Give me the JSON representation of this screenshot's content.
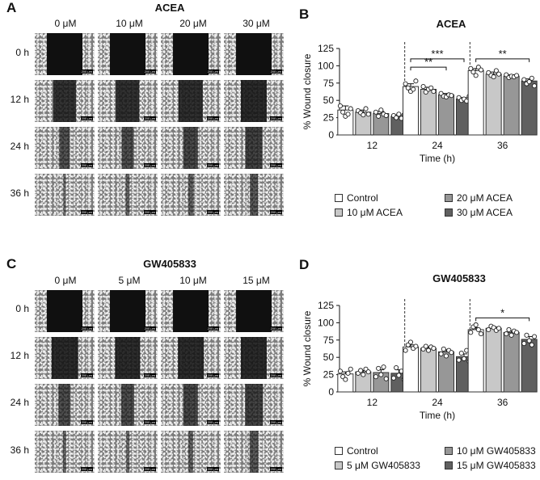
{
  "panels": [
    {
      "label": "A",
      "title": "ACEA",
      "columns": [
        "0 μM",
        "10 μM",
        "20 μM",
        "30 μM"
      ],
      "rows": [
        "0 h",
        "12 h",
        "24 h",
        "36 h"
      ],
      "scale_text": "200 μm",
      "closure_pct": [
        [
          0,
          0,
          0,
          0
        ],
        [
          36,
          33,
          31,
          27
        ],
        [
          70,
          66,
          58,
          52
        ],
        [
          93,
          88,
          85,
          78
        ]
      ]
    },
    {
      "label": "C",
      "title": "GW405833",
      "columns": [
        "0 μM",
        "5 μM",
        "10 μM",
        "15 μM"
      ],
      "rows": [
        "0 h",
        "12 h",
        "24 h",
        "36 h"
      ],
      "scale_text": "200 μm",
      "closure_pct": [
        [
          0,
          0,
          0,
          0
        ],
        [
          26,
          29,
          28,
          27
        ],
        [
          65,
          63,
          58,
          51
        ],
        [
          90,
          92,
          86,
          76
        ]
      ]
    }
  ],
  "chart_data": [
    {
      "panel_label": "B",
      "type": "bar",
      "title": "ACEA",
      "xlabel": "Time (h)",
      "ylabel": "% Wound closure",
      "categories": [
        "12",
        "24",
        "36"
      ],
      "ylim": [
        0,
        125
      ],
      "yticks": [
        0,
        25,
        50,
        75,
        100,
        125
      ],
      "series": [
        {
          "name": "Control",
          "color": "#ffffff",
          "values": [
            36,
            70,
            93
          ],
          "errors": [
            6,
            4,
            3
          ],
          "points": [
            [
              42,
              33,
              27,
              30,
              38
            ],
            [
              74,
              68,
              63,
              66,
              78
            ],
            [
              96,
              91,
              86,
              98,
              94
            ]
          ]
        },
        {
          "name": "10 μM ACEA",
          "color": "#c8c8c8",
          "values": [
            33,
            66,
            88
          ],
          "errors": [
            3,
            3,
            3
          ],
          "points": [
            [
              35,
              32,
              29,
              38,
              30
            ],
            [
              70,
              62,
              66,
              68,
              63
            ],
            [
              90,
              86,
              84,
              93,
              88
            ]
          ]
        },
        {
          "name": "20 μM ACEA",
          "color": "#979797",
          "values": [
            31,
            58,
            85
          ],
          "errors": [
            3,
            2,
            2
          ],
          "points": [
            [
              33,
              27,
              36,
              30,
              28
            ],
            [
              60,
              56,
              55,
              58,
              57
            ],
            [
              87,
              83,
              85,
              84,
              86
            ]
          ]
        },
        {
          "name": "30 μM ACEA",
          "color": "#606060",
          "values": [
            27,
            52,
            78
          ],
          "errors": [
            2,
            2,
            3
          ],
          "points": [
            [
              28,
              25,
              30,
              24,
              29
            ],
            [
              54,
              50,
              52,
              49,
              56
            ],
            [
              80,
              74,
              77,
              82,
              71
            ]
          ]
        }
      ],
      "significance": [
        {
          "category": "24",
          "from_series": 0,
          "to_series": 3,
          "label": "***",
          "y": 110
        },
        {
          "category": "24",
          "from_series": 0,
          "to_series": 2,
          "label": "**",
          "y": 98
        },
        {
          "category": "36",
          "from_series": 0,
          "to_series": 3,
          "label": "**",
          "y": 110
        }
      ],
      "legend": {
        "position": "bottom",
        "columns": 2
      }
    },
    {
      "panel_label": "D",
      "type": "bar",
      "title": "GW405833",
      "xlabel": "Time (h)",
      "ylabel": "% Wound closure",
      "categories": [
        "12",
        "24",
        "36"
      ],
      "ylim": [
        0,
        125
      ],
      "yticks": [
        0,
        25,
        50,
        75,
        100,
        125
      ],
      "series": [
        {
          "name": "Control",
          "color": "#ffffff",
          "values": [
            26,
            65,
            90
          ],
          "errors": [
            3,
            3,
            3
          ],
          "points": [
            [
              30,
              22,
              18,
              27,
              33
            ],
            [
              60,
              68,
              72,
              63,
              66
            ],
            [
              86,
              94,
              97,
              90,
              84
            ]
          ]
        },
        {
          "name": "5 μM GW405833",
          "color": "#c8c8c8",
          "values": [
            29,
            63,
            92
          ],
          "errors": [
            2,
            2,
            2
          ],
          "points": [
            [
              27,
              31,
              25,
              33,
              29
            ],
            [
              62,
              66,
              60,
              65,
              63
            ],
            [
              90,
              95,
              93,
              89,
              92
            ]
          ]
        },
        {
          "name": "10 μM GW405833",
          "color": "#979797",
          "values": [
            28,
            58,
            86
          ],
          "errors": [
            4,
            3,
            2
          ],
          "points": [
            [
              22,
              34,
              25,
              36,
              19
            ],
            [
              55,
              62,
              52,
              60,
              57
            ],
            [
              84,
              90,
              82,
              88,
              86
            ]
          ]
        },
        {
          "name": "15 μM GW405833",
          "color": "#606060",
          "values": [
            27,
            51,
            76
          ],
          "errors": [
            5,
            4,
            4
          ],
          "points": [
            [
              20,
              35,
              24,
              30,
              18
            ],
            [
              46,
              56,
              48,
              60,
              44
            ],
            [
              70,
              82,
              74,
              68,
              80
            ]
          ]
        }
      ],
      "significance": [
        {
          "category": "36",
          "from_series": 0,
          "to_series": 3,
          "label": "*",
          "y": 107
        }
      ],
      "legend": {
        "position": "bottom",
        "columns": 2
      }
    }
  ]
}
